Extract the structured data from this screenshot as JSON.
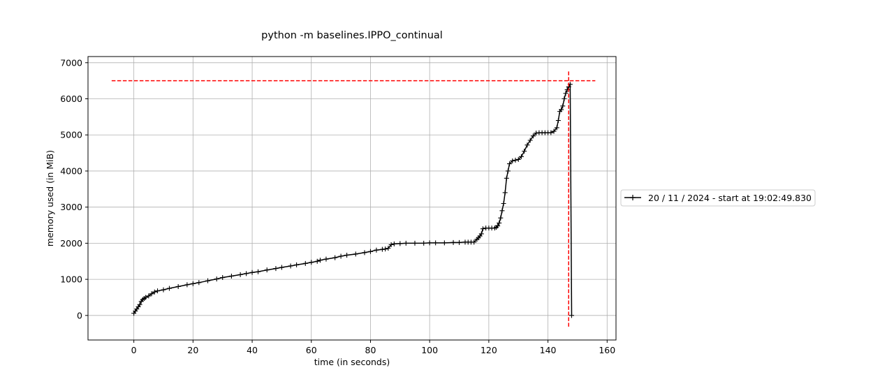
{
  "chart_data": {
    "type": "line",
    "title": "python -m baselines.IPPO_continual",
    "xlabel": "time (in seconds)",
    "ylabel": "memory used (in MiB)",
    "xlim": [
      -15.5,
      163
    ],
    "ylim": [
      -680,
      7170
    ],
    "xticks": [
      0,
      20,
      40,
      60,
      80,
      100,
      120,
      140,
      160
    ],
    "yticks": [
      0,
      1000,
      2000,
      3000,
      4000,
      5000,
      6000,
      7000
    ],
    "grid": true,
    "legend_position": "center-left outside",
    "series": [
      {
        "name": "20 / 11 / 2024 - start at 19:02:49.830",
        "color": "#000000",
        "marker": "+",
        "x": [
          0,
          0.5,
          1,
          1.5,
          2,
          2.5,
          3,
          3.5,
          4,
          5,
          6,
          7,
          8,
          10,
          12,
          15,
          18,
          20,
          22,
          25,
          28,
          30,
          33,
          36,
          38,
          40,
          42,
          45,
          48,
          50,
          53,
          55,
          58,
          60,
          62,
          63,
          65,
          68,
          70,
          72,
          75,
          78,
          80,
          82,
          84,
          85,
          86,
          87,
          88,
          90,
          92,
          95,
          98,
          100,
          102,
          105,
          108,
          110,
          112,
          113,
          114,
          115,
          116,
          116.5,
          117,
          117.5,
          118,
          119,
          120,
          121,
          122,
          122.5,
          123,
          123.5,
          124,
          124.5,
          125,
          125.5,
          126,
          126.5,
          127,
          128,
          129,
          130,
          131,
          132,
          133,
          134,
          135,
          136,
          137,
          138,
          139,
          140,
          141,
          142,
          143,
          143.5,
          144,
          144.5,
          145,
          145.5,
          146,
          146.5,
          147,
          147.5,
          148
        ],
        "y": [
          60,
          120,
          180,
          240,
          300,
          390,
          440,
          470,
          500,
          540,
          600,
          650,
          680,
          710,
          750,
          800,
          850,
          880,
          910,
          960,
          1010,
          1050,
          1090,
          1130,
          1160,
          1190,
          1210,
          1260,
          1300,
          1330,
          1370,
          1400,
          1440,
          1470,
          1500,
          1530,
          1560,
          1600,
          1640,
          1670,
          1700,
          1740,
          1770,
          1810,
          1830,
          1840,
          1860,
          1960,
          1980,
          1990,
          2000,
          2000,
          2000,
          2010,
          2010,
          2010,
          2020,
          2020,
          2030,
          2030,
          2030,
          2030,
          2110,
          2150,
          2200,
          2260,
          2400,
          2420,
          2420,
          2420,
          2420,
          2440,
          2480,
          2560,
          2700,
          2900,
          3100,
          3400,
          3800,
          4000,
          4200,
          4280,
          4300,
          4320,
          4400,
          4550,
          4720,
          4850,
          4970,
          5050,
          5060,
          5060,
          5060,
          5060,
          5060,
          5100,
          5200,
          5400,
          5650,
          5700,
          5800,
          6000,
          6150,
          6250,
          6330,
          6400,
          0
        ]
      }
    ],
    "annotations": {
      "hline_y": 6500,
      "hline_x_range": [
        -7.5,
        156
      ],
      "vline_x": 147,
      "vline_y_range": [
        -310,
        6800
      ],
      "color": "#ff0000",
      "style": "dashed"
    }
  }
}
